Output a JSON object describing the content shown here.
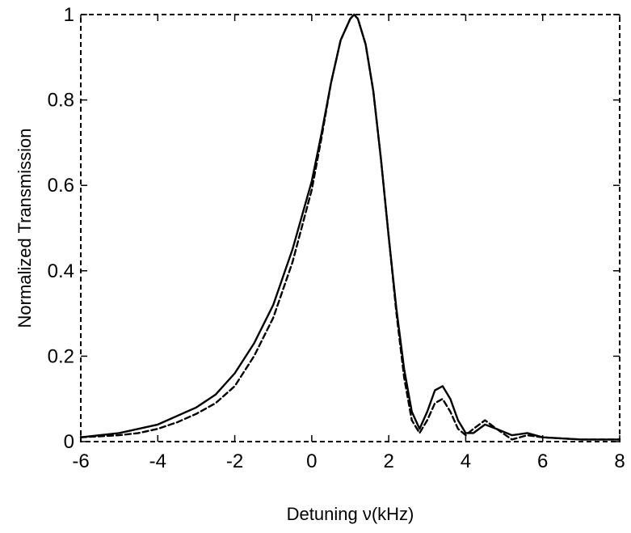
{
  "chart_data": {
    "type": "line",
    "title": "",
    "xlabel": "Detuning  ν(kHz)",
    "ylabel": "Normalized Transmission",
    "xlim": [
      -6,
      8
    ],
    "ylim": [
      0,
      1
    ],
    "xticks": [
      -6,
      -4,
      -2,
      0,
      2,
      4,
      6,
      8
    ],
    "yticks": [
      0,
      0.2,
      0.4,
      0.6,
      0.8,
      1
    ],
    "xtick_labels": [
      "-6",
      "-4",
      "-2",
      "0",
      "2",
      "4",
      "6",
      "8"
    ],
    "ytick_labels": [
      "0",
      "0.2",
      "0.4",
      "0.6",
      "0.8",
      "1"
    ],
    "grid": false,
    "frame_style": "dashed",
    "series": [
      {
        "style": "solid",
        "color": "#000000",
        "x": [
          -6,
          -5,
          -4.5,
          -4,
          -3.5,
          -3,
          -2.5,
          -2,
          -1.5,
          -1,
          -0.5,
          0,
          0.25,
          0.5,
          0.75,
          1,
          1.1,
          1.2,
          1.4,
          1.6,
          1.8,
          2,
          2.2,
          2.4,
          2.6,
          2.8,
          3,
          3.2,
          3.4,
          3.6,
          3.8,
          4,
          4.2,
          4.5,
          4.8,
          5.2,
          5.6,
          6,
          7,
          8
        ],
        "y": [
          0.01,
          0.02,
          0.03,
          0.04,
          0.06,
          0.08,
          0.11,
          0.16,
          0.23,
          0.32,
          0.45,
          0.61,
          0.72,
          0.84,
          0.94,
          0.99,
          1.0,
          0.99,
          0.93,
          0.82,
          0.66,
          0.48,
          0.31,
          0.17,
          0.07,
          0.03,
          0.07,
          0.12,
          0.13,
          0.1,
          0.05,
          0.02,
          0.02,
          0.04,
          0.03,
          0.015,
          0.02,
          0.01,
          0.005,
          0.005
        ]
      },
      {
        "style": "dashed",
        "color": "#000000",
        "x": [
          -6,
          -5,
          -4.5,
          -4,
          -3.5,
          -3,
          -2.5,
          -2,
          -1.5,
          -1,
          -0.5,
          0,
          0.25,
          0.5,
          0.75,
          1,
          1.1,
          1.2,
          1.4,
          1.6,
          1.8,
          2,
          2.2,
          2.4,
          2.6,
          2.8,
          3,
          3.2,
          3.4,
          3.6,
          3.8,
          4,
          4.2,
          4.5,
          4.8,
          5.2,
          5.6,
          6,
          7,
          8
        ],
        "y": [
          0.01,
          0.015,
          0.02,
          0.03,
          0.045,
          0.065,
          0.09,
          0.13,
          0.2,
          0.29,
          0.42,
          0.59,
          0.71,
          0.84,
          0.94,
          0.99,
          1.0,
          0.99,
          0.93,
          0.82,
          0.66,
          0.48,
          0.3,
          0.15,
          0.05,
          0.02,
          0.05,
          0.09,
          0.1,
          0.07,
          0.03,
          0.015,
          0.03,
          0.05,
          0.03,
          0.005,
          0.015,
          0.01,
          0.005,
          0.005
        ]
      }
    ]
  }
}
